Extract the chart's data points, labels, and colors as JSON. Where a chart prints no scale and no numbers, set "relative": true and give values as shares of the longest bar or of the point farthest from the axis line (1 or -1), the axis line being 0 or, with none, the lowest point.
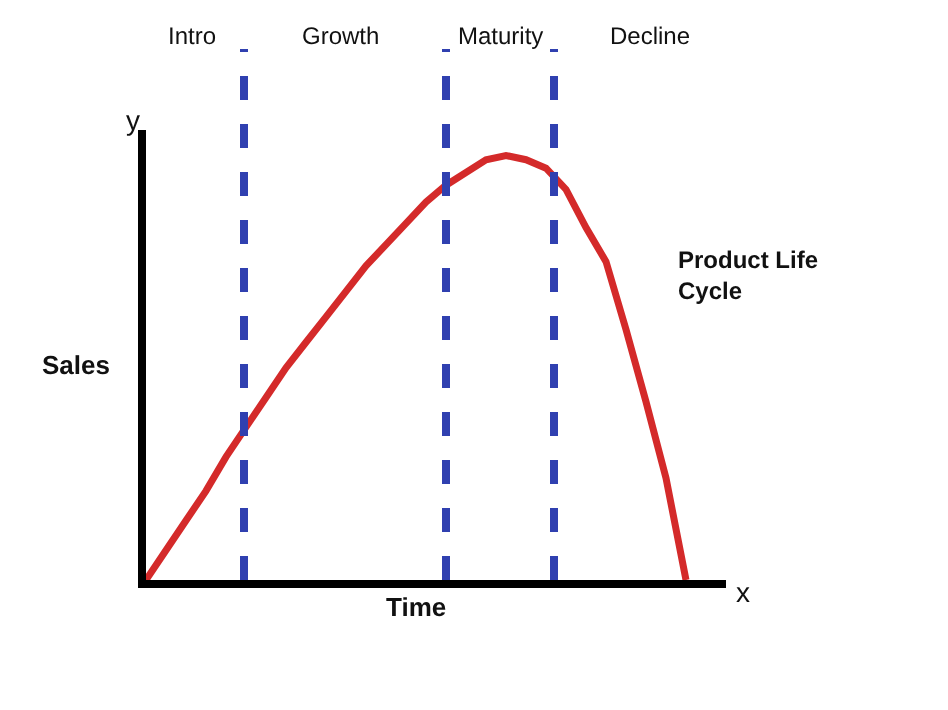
{
  "chart_data": {
    "type": "line",
    "relative": true,
    "xlabel": "Time",
    "ylabel": "Sales",
    "categories": [
      null,
      null,
      null,
      null,
      null,
      null,
      null,
      null,
      null,
      null,
      null,
      null,
      null,
      null,
      null,
      null,
      null,
      null,
      null,
      null,
      null,
      null,
      null,
      null,
      null,
      null,
      null,
      null,
      null,
      null
    ],
    "series": [
      {
        "color": "#d42a2a",
        "values": [
          0,
          0.07,
          0.14,
          0.21,
          0.29,
          0.36,
          0.43,
          0.5,
          0.56,
          0.62,
          0.68,
          0.74,
          0.79,
          0.84,
          0.89,
          0.93,
          0.96,
          0.99,
          1,
          0.99,
          0.97,
          0.92,
          0.83,
          0.75,
          0.59,
          0.42,
          0.24,
          0,
          null,
          null
        ]
      }
    ],
    "annotations": [
      "Intro",
      "Growth",
      "Maturity",
      "Decline",
      "y",
      "x",
      "Product Life Cycle"
    ],
    "grid": false,
    "marker": "none",
    "line_style": "solid"
  }
}
